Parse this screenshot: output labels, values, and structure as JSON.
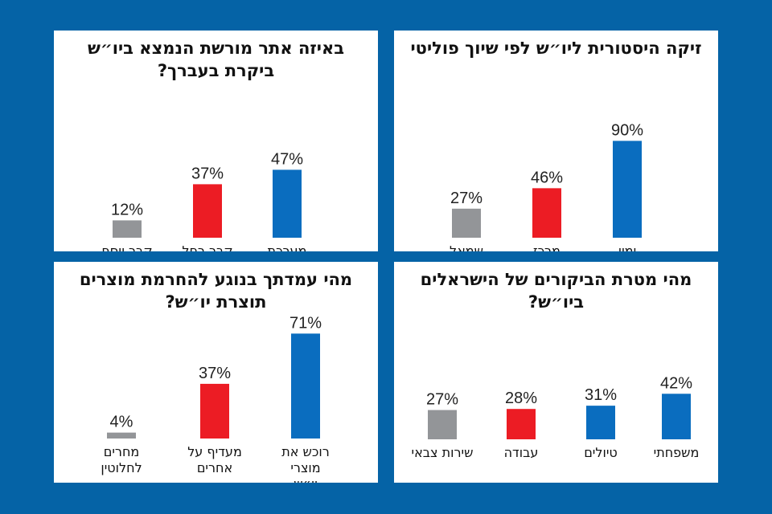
{
  "colors": {
    "background": "#0563a6",
    "gray": "#939598",
    "red": "#ec1c24",
    "blue": "#0a6dbf"
  },
  "chart_data": [
    {
      "type": "bar",
      "title": "באיזה אתר מורשת הנמצא ביו״ש ביקרת בעברך?",
      "categories": [
        "מערכת המכפלה",
        "קבר רחל",
        "קבר יוסף"
      ],
      "values": [
        47,
        37,
        12
      ],
      "value_labels": [
        "47%",
        "37%",
        "12%"
      ],
      "bar_colors": [
        "blue",
        "red",
        "gray"
      ],
      "xlabel": "",
      "ylabel": "",
      "ylim": [
        0,
        100
      ]
    },
    {
      "type": "bar",
      "title": "זיקה היסטורית ליו״ש לפי שיוך פוליטי",
      "categories": [
        "ימין",
        "מרכז",
        "שמאל"
      ],
      "values": [
        90,
        46,
        27
      ],
      "value_labels": [
        "90%",
        "46%",
        "27%"
      ],
      "bar_colors": [
        "blue",
        "red",
        "gray"
      ],
      "xlabel": "",
      "ylabel": "",
      "ylim": [
        0,
        100
      ]
    },
    {
      "type": "bar",
      "title": "מהי עמדתך בנוגע להחרמת מוצרים תוצרת יו״ש?",
      "categories": [
        "רוכש את מוצרי יו״ש",
        "מעדיף על אחרים",
        "מחרים לחלוטין"
      ],
      "values": [
        71,
        37,
        4
      ],
      "value_labels": [
        "71%",
        "37%",
        "4%"
      ],
      "bar_colors": [
        "blue",
        "red",
        "gray"
      ],
      "xlabel": "",
      "ylabel": "",
      "ylim": [
        0,
        100
      ]
    },
    {
      "type": "bar",
      "title": "מהי מטרת הביקורים של הישראלים ביו״ש?",
      "categories": [
        "משפחתי",
        "טיולים",
        "עבודה",
        "שירות צבאי"
      ],
      "values": [
        42,
        31,
        28,
        27
      ],
      "value_labels": [
        "42%",
        "31%",
        "28%",
        "27%"
      ],
      "bar_colors": [
        "blue",
        "blue",
        "red",
        "gray"
      ],
      "xlabel": "",
      "ylabel": "",
      "ylim": [
        0,
        100
      ]
    }
  ]
}
